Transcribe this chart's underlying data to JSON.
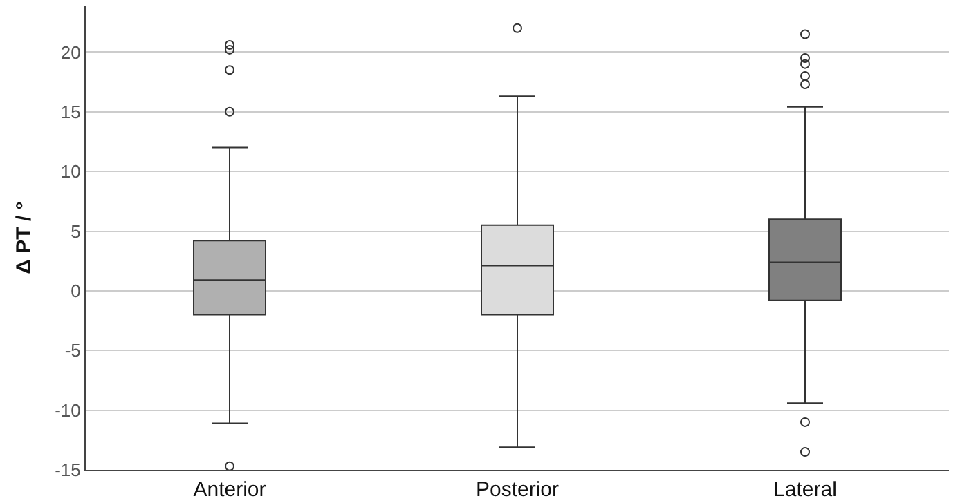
{
  "chart_data": {
    "type": "box",
    "ylabel": "Δ PT / °",
    "categories": [
      "Anterior",
      "Posterior",
      "Lateral"
    ],
    "boxes": [
      {
        "low": -11.1,
        "q1": -2.0,
        "median": 0.9,
        "q3": 4.2,
        "high": 12.0,
        "outliers": [
          20.6,
          20.2,
          18.5,
          15.0,
          -14.7
        ]
      },
      {
        "low": -13.1,
        "q1": -2.0,
        "median": 2.1,
        "q3": 5.5,
        "high": 16.3,
        "outliers": [
          22.0
        ]
      },
      {
        "low": -9.4,
        "q1": -0.8,
        "median": 2.4,
        "q3": 6.0,
        "high": 15.4,
        "outliers": [
          21.5,
          19.5,
          19.0,
          18.0,
          17.3,
          -11.0,
          -13.5
        ]
      }
    ],
    "colors": [
      "#b0b0b0",
      "#dcdcdc",
      "#808080"
    ],
    "ylim": [
      -15,
      23.9
    ],
    "yticks": [
      -15,
      -10,
      -5,
      0,
      5,
      10,
      15,
      20
    ],
    "grid": "y",
    "marker": "circle"
  }
}
